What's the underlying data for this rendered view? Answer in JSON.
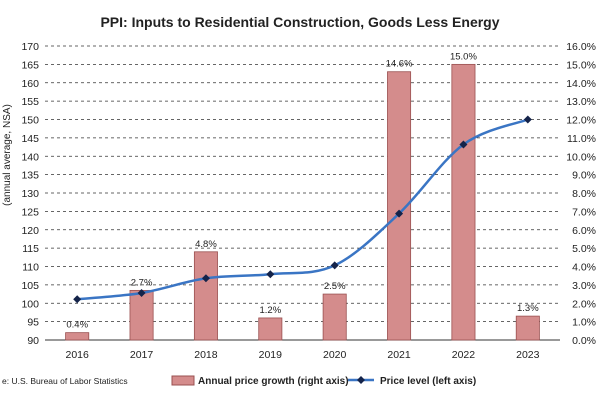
{
  "chart_data": {
    "type": "bar+line",
    "title": "PPI: Inputs to Residential Construction, Goods Less Energy",
    "categories": [
      "2016",
      "2017",
      "2018",
      "2019",
      "2020",
      "2021",
      "2022",
      "2023"
    ],
    "series": [
      {
        "name": "Annual price growth (right axis)",
        "kind": "bar",
        "axis": "right",
        "values": [
          0.4,
          2.7,
          4.8,
          1.2,
          2.5,
          14.6,
          15.0,
          1.3
        ],
        "labels": [
          "0.4%",
          "2.7%",
          "4.8%",
          "1.2%",
          "2.5%",
          "14.6%",
          "15.0%",
          "1.3%"
        ],
        "color": "#d48c8c"
      },
      {
        "name": "Price level (left axis)",
        "kind": "line",
        "axis": "left",
        "values": [
          101.1,
          102.8,
          106.8,
          107.9,
          110.3,
          124.4,
          143.2,
          150.0
        ],
        "color": "#3a75c4",
        "marker_color": "#14234a"
      }
    ],
    "left_axis": {
      "label": "(annual average, NSA)",
      "ylim": [
        90,
        170
      ],
      "ticks": [
        "90",
        "95",
        "100",
        "105",
        "110",
        "115",
        "120",
        "125",
        "130",
        "135",
        "140",
        "145",
        "150",
        "155",
        "160",
        "165",
        "170"
      ]
    },
    "right_axis": {
      "ylim": [
        0,
        16
      ],
      "ticks": [
        "0.0%",
        "1.0%",
        "2.0%",
        "3.0%",
        "4.0%",
        "5.0%",
        "6.0%",
        "7.0%",
        "8.0%",
        "9.0%",
        "10.0%",
        "11.0%",
        "12.0%",
        "13.0%",
        "14.0%",
        "15.0%",
        "16.0%"
      ]
    },
    "grid": "horizontal dashed",
    "legend_placement": "bottom-center",
    "source": "e: U.S. Bureau of Labor Statistics"
  }
}
